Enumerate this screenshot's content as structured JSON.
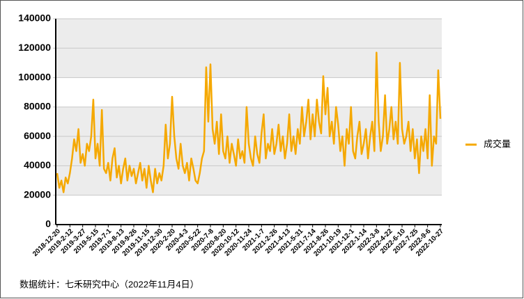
{
  "chart_data": {
    "type": "line",
    "categories": [
      "2018-12-20",
      null,
      null,
      null,
      null,
      null,
      "2019-2-12",
      null,
      null,
      null,
      null,
      null,
      "2019-3-27",
      null,
      null,
      null,
      null,
      null,
      "2019-5-15",
      null,
      null,
      null,
      null,
      null,
      "2019-7-1",
      null,
      null,
      null,
      null,
      null,
      "2019-8-13",
      null,
      null,
      null,
      null,
      null,
      "2019-9-26",
      null,
      null,
      null,
      null,
      null,
      "2019-11-15",
      null,
      null,
      null,
      null,
      null,
      "2019-12-30",
      null,
      null,
      null,
      null,
      null,
      "2020-2-20",
      null,
      null,
      null,
      null,
      null,
      "2020-4-3",
      null,
      null,
      null,
      null,
      null,
      "2020-5-22",
      null,
      null,
      null,
      null,
      null,
      "2020-7-8",
      null,
      null,
      null,
      null,
      null,
      "2020-8-20",
      null,
      null,
      null,
      null,
      null,
      "2020-10-12",
      null,
      null,
      null,
      null,
      null,
      "2020-11-24",
      null,
      null,
      null,
      null,
      null,
      "2021-1-7",
      null,
      null,
      null,
      null,
      null,
      "2021-2-26",
      null,
      null,
      null,
      null,
      null,
      "2021-4-13",
      null,
      null,
      null,
      null,
      null,
      "2021-5-31",
      null,
      null,
      null,
      null,
      null,
      "2021-7-14",
      null,
      null,
      null,
      null,
      null,
      "2021-8-26",
      null,
      null,
      null,
      null,
      null,
      "2021-10-19",
      null,
      null,
      null,
      null,
      null,
      "2021-12-1",
      null,
      null,
      null,
      null,
      null,
      "2022-1-14",
      null,
      null,
      null,
      null,
      null,
      "2022-3-8",
      null,
      null,
      null,
      null,
      null,
      "2022-4-22",
      null,
      null,
      null,
      null,
      null,
      "2022-6-10",
      null,
      null,
      null,
      null,
      null,
      "2022-7-25",
      null,
      null,
      null,
      null,
      null,
      "2022-9-6",
      null,
      null,
      null,
      null,
      null,
      "2022-10-27"
    ],
    "series": [
      {
        "name": "成交量",
        "color": "#f5a800",
        "values": [
          35000,
          25000,
          30000,
          22000,
          32000,
          28000,
          35000,
          45000,
          58000,
          50000,
          65000,
          42000,
          48000,
          40000,
          55000,
          50000,
          60000,
          85000,
          45000,
          55000,
          40000,
          78000,
          38000,
          35000,
          42000,
          30000,
          45000,
          52000,
          32000,
          40000,
          28000,
          38000,
          45000,
          30000,
          40000,
          33000,
          38000,
          28000,
          35000,
          42000,
          30000,
          38000,
          25000,
          40000,
          30000,
          22000,
          38000,
          28000,
          35000,
          30000,
          40000,
          68000,
          45000,
          55000,
          87000,
          60000,
          45000,
          38000,
          55000,
          40000,
          35000,
          42000,
          30000,
          45000,
          38000,
          30000,
          28000,
          35000,
          45000,
          50000,
          107000,
          70000,
          109000,
          65000,
          55000,
          70000,
          48000,
          75000,
          50000,
          45000,
          60000,
          42000,
          55000,
          48000,
          40000,
          58000,
          45000,
          50000,
          42000,
          80000,
          55000,
          45000,
          40000,
          60000,
          48000,
          42000,
          62000,
          75000,
          45000,
          55000,
          50000,
          65000,
          48000,
          55000,
          68000,
          50000,
          60000,
          45000,
          55000,
          75000,
          50000,
          60000,
          48000,
          65000,
          55000,
          80000,
          60000,
          70000,
          85000,
          58000,
          75000,
          60000,
          85000,
          70000,
          62000,
          101000,
          75000,
          93000,
          60000,
          70000,
          55000,
          80000,
          68000,
          50000,
          60000,
          40000,
          65000,
          55000,
          80000,
          50000,
          45000,
          60000,
          70000,
          48000,
          55000,
          65000,
          45000,
          60000,
          70000,
          50000,
          117000,
          70000,
          50000,
          60000,
          88000,
          55000,
          65000,
          80000,
          58000,
          70000,
          55000,
          110000,
          65000,
          55000,
          60000,
          70000,
          50000,
          65000,
          45000,
          58000,
          35000,
          60000,
          50000,
          65000,
          45000,
          88000,
          40000,
          60000,
          55000,
          105000,
          72000
        ]
      }
    ],
    "ylim": [
      0,
      140000
    ],
    "yticks": [
      0,
      20000,
      40000,
      60000,
      80000,
      100000,
      120000,
      140000
    ],
    "grid": true,
    "legend": "right",
    "footnote": "数据统计：七禾研究中心（2022年11月4日）"
  }
}
